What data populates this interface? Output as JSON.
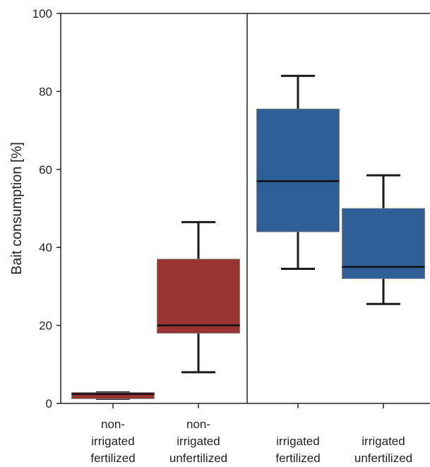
{
  "chart_data": {
    "type": "boxplot",
    "title": "",
    "ylabel": "Bait consumption [%]",
    "xlabel": "",
    "ylim": [
      0,
      100
    ],
    "yticks": [
      "0",
      "20",
      "40",
      "60",
      "80",
      "100"
    ],
    "grid": false,
    "legend": "none",
    "categories": [
      [
        "non-",
        "irrigated",
        "fertilized"
      ],
      [
        "non-",
        "irrigated",
        "unfertilized"
      ],
      [
        "irrigated",
        "fertilized"
      ],
      [
        "irrigated",
        "unfertilized"
      ]
    ],
    "boxes": [
      {
        "whisker_low": 1.2,
        "q1": 1.2,
        "median": 2.4,
        "q3": 2.8,
        "whisker_high": 2.8,
        "color": "#9a3432"
      },
      {
        "whisker_low": 8,
        "q1": 18,
        "median": 20,
        "q3": 37,
        "whisker_high": 46.5,
        "color": "#9a3432"
      },
      {
        "whisker_low": 34.5,
        "q1": 44,
        "median": 57,
        "q3": 75.5,
        "whisker_high": 84,
        "color": "#2f5f96"
      },
      {
        "whisker_low": 25.5,
        "q1": 32,
        "median": 35,
        "q3": 50,
        "whisker_high": 58.5,
        "color": "#2f5f96"
      }
    ]
  }
}
